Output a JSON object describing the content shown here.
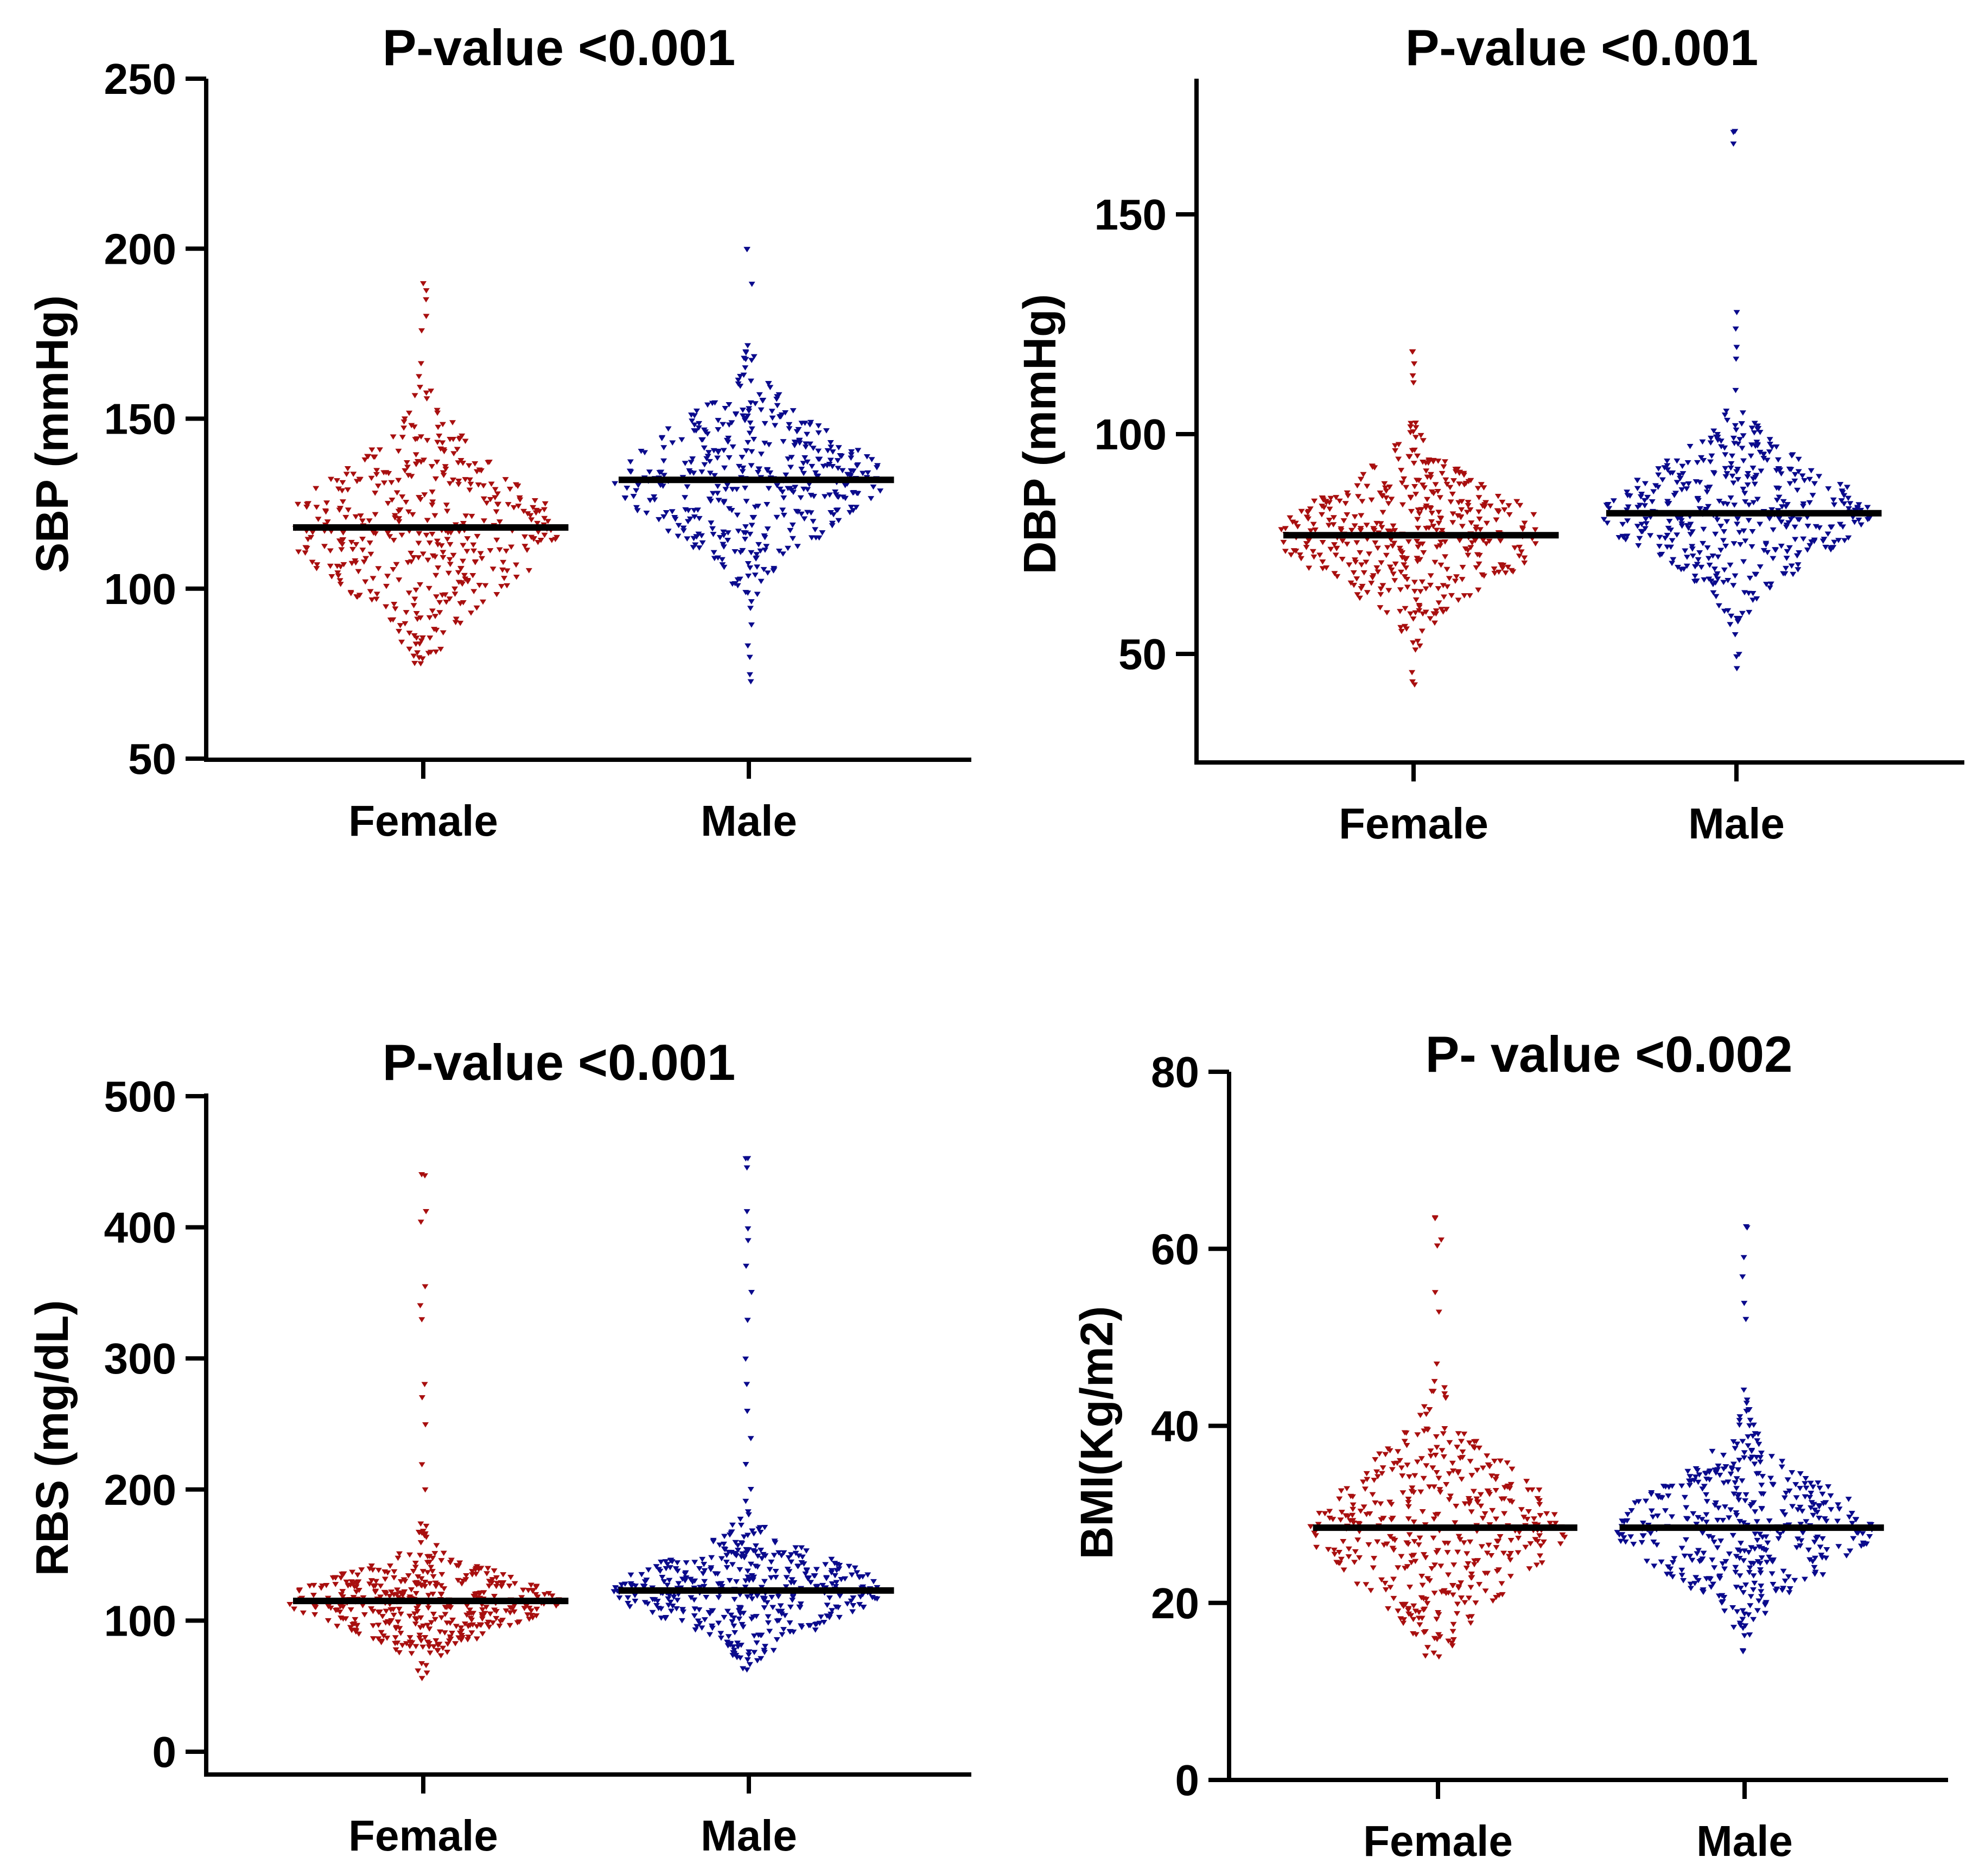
{
  "figure": {
    "colors": {
      "female": "#a80f0f",
      "male": "#0a0a8c",
      "median": "#000000"
    }
  },
  "chart_data": [
    {
      "type": "scatter",
      "style": "beeswarm",
      "title": "P-value <0.001",
      "xlabel": "",
      "ylabel": "SBP (mmHg)",
      "categories": [
        "Female",
        "Male"
      ],
      "yticks": [
        50,
        100,
        150,
        200,
        250
      ],
      "ylim": [
        50,
        250
      ],
      "series": [
        {
          "name": "Female",
          "median": 118,
          "min": 78,
          "q1": 108,
          "q3": 132,
          "max": 190,
          "outliers": [
            185,
            188,
            180,
            176
          ]
        },
        {
          "name": "Male",
          "median": 132,
          "min": 73,
          "q1": 122,
          "q3": 142,
          "max": 200,
          "outliers": [
            200,
            190,
            80,
            75
          ]
        }
      ]
    },
    {
      "type": "scatter",
      "style": "beeswarm",
      "title": "P-value <0.001",
      "xlabel": "",
      "ylabel": "DBP (mmHg)",
      "categories": [
        "Female",
        "Male"
      ],
      "yticks": [
        50,
        100,
        150
      ],
      "ylim": [
        25,
        180
      ],
      "series": [
        {
          "name": "Female",
          "median": 77,
          "min": 43,
          "q1": 70,
          "q3": 84,
          "max": 119,
          "outliers": [
            116,
            119,
            112,
            46
          ]
        },
        {
          "name": "Male",
          "median": 82,
          "min": 47,
          "q1": 75,
          "q3": 89,
          "max": 169,
          "outliers": [
            169,
            166,
            128,
            124,
            120,
            50
          ]
        }
      ]
    },
    {
      "type": "scatter",
      "style": "beeswarm",
      "title": "P-value <0.001",
      "xlabel": "",
      "ylabel": "RBS (mg/dL)",
      "categories": [
        "Female",
        "Male"
      ],
      "yticks": [
        0,
        100,
        200,
        300,
        400,
        500
      ],
      "ylim": [
        -20,
        500
      ],
      "series": [
        {
          "name": "Female",
          "median": 115,
          "min": 56,
          "q1": 100,
          "q3": 128,
          "max": 440,
          "outliers": [
            440,
            412,
            405,
            355,
            340,
            330,
            280,
            270,
            250,
            220,
            200
          ]
        },
        {
          "name": "Male",
          "median": 123,
          "min": 62,
          "q1": 105,
          "q3": 138,
          "max": 452,
          "outliers": [
            452,
            445,
            413,
            400,
            390,
            370,
            350,
            330,
            300,
            280,
            260,
            240,
            220,
            200
          ]
        }
      ]
    },
    {
      "type": "scatter",
      "style": "beeswarm",
      "title": "P- value <0.002",
      "xlabel": "",
      "ylabel": "BMI(Kg/m2)",
      "categories": [
        "Female",
        "Male"
      ],
      "yticks": [
        0,
        20,
        40,
        60,
        80
      ],
      "ylim": [
        0,
        80
      ],
      "series": [
        {
          "name": "Female",
          "median": 28.5,
          "min": 14,
          "q1": 24,
          "q3": 33,
          "max": 63.5,
          "outliers": [
            63.5,
            61,
            60.5,
            55,
            53
          ]
        },
        {
          "name": "Male",
          "median": 28.5,
          "min": 14.5,
          "q1": 25,
          "q3": 32,
          "max": 62.5,
          "outliers": [
            62.5,
            59,
            57,
            54,
            52
          ]
        }
      ]
    }
  ]
}
